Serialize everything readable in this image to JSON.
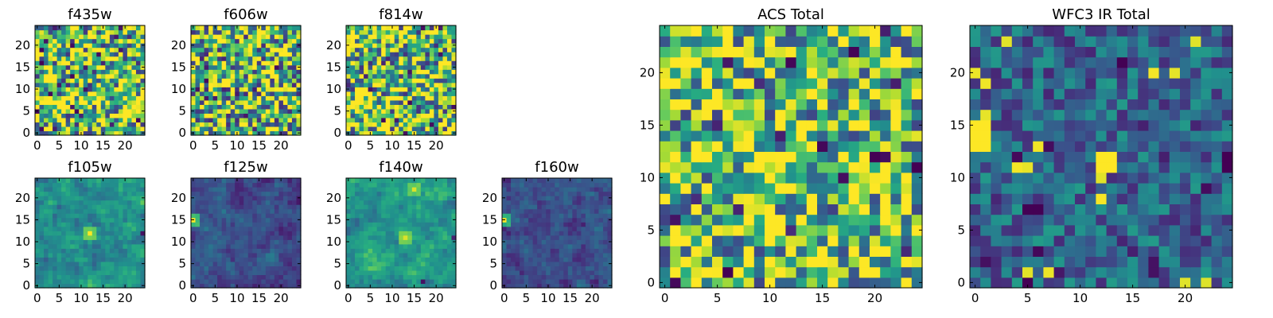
{
  "figure": {
    "background": "#ffffff",
    "colormap": "viridis"
  },
  "chart_data": [
    {
      "type": "heatmap",
      "title": "f435w",
      "grid_size": 25,
      "xticks": [
        0,
        5,
        10,
        15,
        20
      ],
      "yticks": [
        0,
        5,
        10,
        15,
        20
      ],
      "xlim": [
        0,
        25
      ],
      "ylim": [
        0,
        25
      ],
      "origin": "lower",
      "appearance": "uniform pixel noise, mostly green-yellow (viridis 0.45-0.95) with scattered dark purple pixels",
      "base_level": 0.7,
      "noise": 0.55,
      "smooth": false,
      "hotspots": [],
      "coldspots": [],
      "seed": 11
    },
    {
      "type": "heatmap",
      "title": "f606w",
      "grid_size": 25,
      "xticks": [
        0,
        5,
        10,
        15,
        20
      ],
      "yticks": [
        0,
        5,
        10,
        15,
        20
      ],
      "xlim": [
        0,
        25
      ],
      "ylim": [
        0,
        25
      ],
      "origin": "lower",
      "appearance": "uniform pixel noise, green-yellow with a few dark pixels",
      "base_level": 0.68,
      "noise": 0.55,
      "smooth": false,
      "hotspots": [],
      "coldspots": [],
      "seed": 23
    },
    {
      "type": "heatmap",
      "title": "f814w",
      "grid_size": 25,
      "xticks": [
        0,
        5,
        10,
        15,
        20
      ],
      "yticks": [
        0,
        5,
        10,
        15,
        20
      ],
      "xlim": [
        0,
        25
      ],
      "ylim": [
        0,
        25
      ],
      "origin": "lower",
      "appearance": "uniform pixel noise, green-yellow with a few dark pixels",
      "base_level": 0.7,
      "noise": 0.55,
      "smooth": false,
      "hotspots": [],
      "coldspots": [],
      "seed": 37
    },
    {
      "type": "heatmap",
      "title": "f105w",
      "grid_size": 25,
      "xticks": [
        0,
        5,
        10,
        15,
        20
      ],
      "yticks": [
        0,
        5,
        10,
        15,
        20
      ],
      "xlim": [
        0,
        25
      ],
      "ylim": [
        0,
        25
      ],
      "origin": "lower",
      "appearance": "smooth green field, bright yellow source near center, dark pixels near right edge",
      "base_level": 0.5,
      "noise": 0.35,
      "smooth": true,
      "hotspots": [
        {
          "x": 12,
          "y": 12,
          "value": 1.0
        }
      ],
      "coldspots": [
        {
          "x": 24,
          "y": 12,
          "value": 0.05
        }
      ],
      "seed": 41
    },
    {
      "type": "heatmap",
      "title": "f125w",
      "grid_size": 25,
      "xticks": [
        0,
        5,
        10,
        15,
        20
      ],
      "yticks": [
        0,
        5,
        10,
        15,
        20
      ],
      "xlim": [
        0,
        25
      ],
      "ylim": [
        0,
        25
      ],
      "origin": "lower",
      "appearance": "smooth dark blue-purple field, bright yellow source at left edge",
      "base_level": 0.25,
      "noise": 0.25,
      "smooth": true,
      "hotspots": [
        {
          "x": 0,
          "y": 15,
          "value": 1.0
        }
      ],
      "coldspots": [],
      "seed": 53
    },
    {
      "type": "heatmap",
      "title": "f140w",
      "grid_size": 25,
      "xticks": [
        0,
        5,
        10,
        15,
        20
      ],
      "yticks": [
        0,
        5,
        10,
        15,
        20
      ],
      "xlim": [
        0,
        25
      ],
      "ylim": [
        0,
        25
      ],
      "origin": "lower",
      "appearance": "smooth green field, yellow source near center and near top, dark pixels bottom-right and right edge",
      "base_level": 0.55,
      "noise": 0.35,
      "smooth": true,
      "hotspots": [
        {
          "x": 13,
          "y": 11,
          "value": 0.95
        },
        {
          "x": 15,
          "y": 22,
          "value": 0.95
        }
      ],
      "coldspots": [
        {
          "x": 17,
          "y": 1,
          "value": 0.05
        },
        {
          "x": 24,
          "y": 11,
          "value": 0.1
        }
      ],
      "seed": 67
    },
    {
      "type": "heatmap",
      "title": "f160w",
      "grid_size": 25,
      "xticks": [
        0,
        5,
        10,
        15,
        20
      ],
      "yticks": [
        0,
        5,
        10,
        15,
        20
      ],
      "xlim": [
        0,
        25
      ],
      "ylim": [
        0,
        25
      ],
      "origin": "lower",
      "appearance": "smooth dark blue-purple field, bright yellow source at left edge",
      "base_level": 0.25,
      "noise": 0.25,
      "smooth": true,
      "hotspots": [
        {
          "x": 0,
          "y": 15,
          "value": 1.0
        }
      ],
      "coldspots": [],
      "seed": 79
    },
    {
      "type": "heatmap",
      "title": "ACS Total",
      "grid_size": 25,
      "xticks": [
        0,
        5,
        10,
        15,
        20
      ],
      "yticks": [
        0,
        5,
        10,
        15,
        20
      ],
      "xlim": [
        0,
        25
      ],
      "ylim": [
        0,
        25
      ],
      "origin": "lower",
      "appearance": "uniform pixel noise, green-yellow with scattered dark purple pixels",
      "base_level": 0.7,
      "noise": 0.5,
      "smooth": false,
      "hotspots": [],
      "coldspots": [
        {
          "x": 6,
          "y": 1,
          "value": 0.0
        },
        {
          "x": 24,
          "y": 11,
          "value": 0.0
        },
        {
          "x": 20,
          "y": 12,
          "value": 0.0
        }
      ],
      "seed": 97
    },
    {
      "type": "heatmap",
      "title": "WFC3 IR Total",
      "grid_size": 25,
      "xticks": [
        0,
        5,
        10,
        15,
        20
      ],
      "yticks": [
        0,
        5,
        10,
        15,
        20
      ],
      "xlim": [
        0,
        25
      ],
      "ylim": [
        0,
        25
      ],
      "origin": "lower",
      "appearance": "blocky teal-blue field, bright yellow source at left edge and near center, dark purple spots",
      "base_level": 0.33,
      "noise": 0.22,
      "smooth": false,
      "hotspots": [
        {
          "x": 0,
          "y": 15,
          "value": 1.0
        },
        {
          "x": 1,
          "y": 15,
          "value": 1.0
        },
        {
          "x": 0,
          "y": 14,
          "value": 1.0
        },
        {
          "x": 1,
          "y": 14,
          "value": 1.0
        },
        {
          "x": 0,
          "y": 13,
          "value": 1.0
        },
        {
          "x": 1,
          "y": 13,
          "value": 1.0
        },
        {
          "x": 12,
          "y": 11,
          "value": 1.0
        },
        {
          "x": 13,
          "y": 11,
          "value": 1.0
        },
        {
          "x": 12,
          "y": 12,
          "value": 1.0
        },
        {
          "x": 13,
          "y": 12,
          "value": 1.0
        }
      ],
      "coldspots": [
        {
          "x": 5,
          "y": 7,
          "value": 0.0
        },
        {
          "x": 6,
          "y": 7,
          "value": 0.0
        },
        {
          "x": 24,
          "y": 11,
          "value": 0.0
        },
        {
          "x": 24,
          "y": 12,
          "value": 0.0
        },
        {
          "x": 17,
          "y": 1,
          "value": 0.05
        },
        {
          "x": 17,
          "y": 2,
          "value": 0.05
        }
      ],
      "seed": 113
    }
  ]
}
